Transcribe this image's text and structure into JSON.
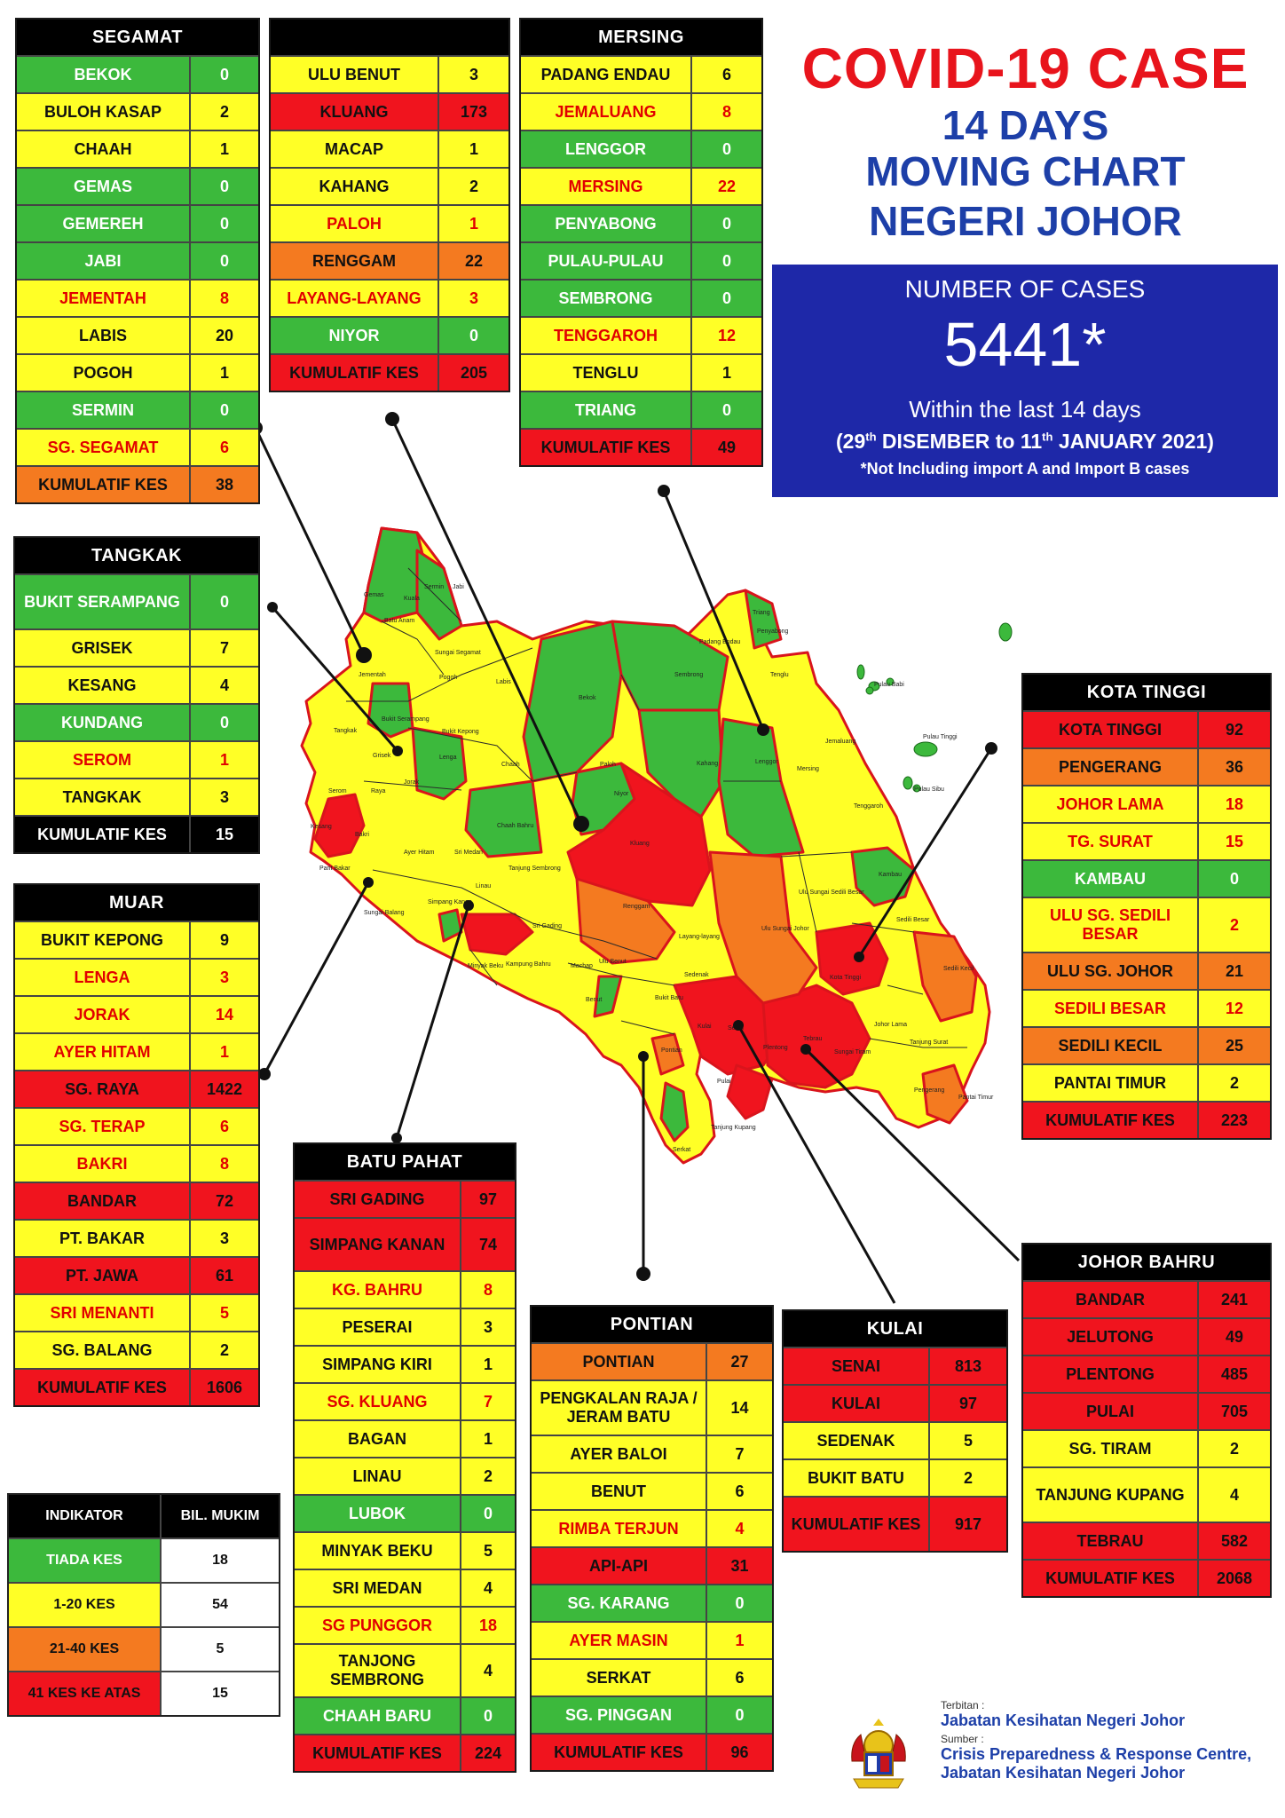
{
  "title": {
    "line1": "COVID-19 CASE",
    "line2": "14 DAYS",
    "line3": "MOVING CHART",
    "line4": "NEGERI JOHOR"
  },
  "summary": {
    "label": "NUMBER OF CASES",
    "total": "5441*",
    "within": "Within the last 14 days",
    "range_open": "(29",
    "sup1": "th",
    "range_mid": " DISEMBER to 11",
    "sup2": "th",
    "range_close": " JANUARY 2021)",
    "note": "*Not Including import A and Import B cases"
  },
  "colors": {
    "green": "#3cb93c",
    "yellow": "#ffff26",
    "orange": "#f47a20",
    "red": "#f0141e",
    "blue": "#1e28a8"
  },
  "districts": {
    "segamat": {
      "title": "SEGAMAT",
      "rows": [
        {
          "name": "BEKOK",
          "value": "0",
          "level": "g"
        },
        {
          "name": "BULOH KASAP",
          "value": "2",
          "level": "y"
        },
        {
          "name": "CHAAH",
          "value": "1",
          "level": "y"
        },
        {
          "name": "GEMAS",
          "value": "0",
          "level": "g"
        },
        {
          "name": "GEMEREH",
          "value": "0",
          "level": "g"
        },
        {
          "name": "JABI",
          "value": "0",
          "level": "g"
        },
        {
          "name": "JEMENTAH",
          "value": "8",
          "level": "yr"
        },
        {
          "name": "LABIS",
          "value": "20",
          "level": "y"
        },
        {
          "name": "POGOH",
          "value": "1",
          "level": "y"
        },
        {
          "name": "SERMIN",
          "value": "0",
          "level": "g"
        },
        {
          "name": "SG. SEGAMAT",
          "value": "6",
          "level": "yr"
        },
        {
          "name": "KUMULATIF KES",
          "value": "38",
          "level": "o"
        }
      ]
    },
    "ulubenut": {
      "title": "",
      "rows": [
        {
          "name": "ULU BENUT",
          "value": "3",
          "level": "y"
        },
        {
          "name": "KLUANG",
          "value": "173",
          "level": "r"
        },
        {
          "name": "MACAP",
          "value": "1",
          "level": "y"
        },
        {
          "name": "KAHANG",
          "value": "2",
          "level": "y"
        },
        {
          "name": "PALOH",
          "value": "1",
          "level": "yr"
        },
        {
          "name": "RENGGAM",
          "value": "22",
          "level": "o"
        },
        {
          "name": "LAYANG-LAYANG",
          "value": "3",
          "level": "yr"
        },
        {
          "name": "NIYOR",
          "value": "0",
          "level": "g"
        },
        {
          "name": "KUMULATIF KES",
          "value": "205",
          "level": "r"
        }
      ]
    },
    "mersing": {
      "title": "MERSING",
      "rows": [
        {
          "name": "PADANG ENDAU",
          "value": "6",
          "level": "y"
        },
        {
          "name": "JEMALUANG",
          "value": "8",
          "level": "yr"
        },
        {
          "name": "LENGGOR",
          "value": "0",
          "level": "g"
        },
        {
          "name": "MERSING",
          "value": "22",
          "level": "yr"
        },
        {
          "name": "PENYABONG",
          "value": "0",
          "level": "g"
        },
        {
          "name": "PULAU-PULAU",
          "value": "0",
          "level": "g"
        },
        {
          "name": "SEMBRONG",
          "value": "0",
          "level": "g"
        },
        {
          "name": "TENGGAROH",
          "value": "12",
          "level": "yr"
        },
        {
          "name": "TENGLU",
          "value": "1",
          "level": "y"
        },
        {
          "name": "TRIANG",
          "value": "0",
          "level": "g"
        },
        {
          "name": "KUMULATIF KES",
          "value": "49",
          "level": "r"
        }
      ]
    },
    "tangkak": {
      "title": "TANGKAK",
      "rows": [
        {
          "name": "BUKIT SERAMPANG",
          "value": "0",
          "level": "g",
          "tall": true
        },
        {
          "name": "GRISEK",
          "value": "7",
          "level": "y"
        },
        {
          "name": "KESANG",
          "value": "4",
          "level": "y"
        },
        {
          "name": "KUNDANG",
          "value": "0",
          "level": "g"
        },
        {
          "name": "SEROM",
          "value": "1",
          "level": "yr"
        },
        {
          "name": "TANGKAK",
          "value": "3",
          "level": "y"
        },
        {
          "name": "KUMULATIF KES",
          "value": "15",
          "level": "k"
        }
      ]
    },
    "muar": {
      "title": "MUAR",
      "rows": [
        {
          "name": "BUKIT KEPONG",
          "value": "9",
          "level": "y"
        },
        {
          "name": "LENGA",
          "value": "3",
          "level": "yr"
        },
        {
          "name": "JORAK",
          "value": "14",
          "level": "yr"
        },
        {
          "name": "AYER HITAM",
          "value": "1",
          "level": "yr"
        },
        {
          "name": "SG. RAYA",
          "value": "1422",
          "level": "r"
        },
        {
          "name": "SG. TERAP",
          "value": "6",
          "level": "yr"
        },
        {
          "name": "BAKRI",
          "value": "8",
          "level": "yr"
        },
        {
          "name": "BANDAR",
          "value": "72",
          "level": "r"
        },
        {
          "name": "PT. BAKAR",
          "value": "3",
          "level": "y"
        },
        {
          "name": "PT. JAWA",
          "value": "61",
          "level": "r"
        },
        {
          "name": "SRI MENANTI",
          "value": "5",
          "level": "yr"
        },
        {
          "name": "SG. BALANG",
          "value": "2",
          "level": "y"
        },
        {
          "name": "KUMULATIF KES",
          "value": "1606",
          "level": "r"
        }
      ]
    },
    "batupahat": {
      "title": "BATU PAHAT",
      "rows": [
        {
          "name": "SRI GADING",
          "value": "97",
          "level": "r"
        },
        {
          "name": "SIMPANG KANAN",
          "value": "74",
          "level": "r",
          "tall": true
        },
        {
          "name": "KG. BAHRU",
          "value": "8",
          "level": "yr"
        },
        {
          "name": "PESERAI",
          "value": "3",
          "level": "y"
        },
        {
          "name": "SIMPANG KIRI",
          "value": "1",
          "level": "y"
        },
        {
          "name": "SG. KLUANG",
          "value": "7",
          "level": "yr"
        },
        {
          "name": "BAGAN",
          "value": "1",
          "level": "y"
        },
        {
          "name": "LINAU",
          "value": "2",
          "level": "y"
        },
        {
          "name": "LUBOK",
          "value": "0",
          "level": "g"
        },
        {
          "name": "MINYAK BEKU",
          "value": "5",
          "level": "y"
        },
        {
          "name": "SRI MEDAN",
          "value": "4",
          "level": "y"
        },
        {
          "name": "SG PUNGGOR",
          "value": "18",
          "level": "yr"
        },
        {
          "name": "TANJONG SEMBRONG",
          "value": "4",
          "level": "y",
          "tall": true
        },
        {
          "name": "CHAAH BARU",
          "value": "0",
          "level": "g"
        },
        {
          "name": "KUMULATIF KES",
          "value": "224",
          "level": "r"
        }
      ]
    },
    "pontian": {
      "title": "PONTIAN",
      "rows": [
        {
          "name": "PONTIAN",
          "value": "27",
          "level": "o"
        },
        {
          "name": "PENGKALAN RAJA / JERAM BATU",
          "value": "14",
          "level": "y",
          "tall": true
        },
        {
          "name": "AYER BALOI",
          "value": "7",
          "level": "y"
        },
        {
          "name": "BENUT",
          "value": "6",
          "level": "y"
        },
        {
          "name": "RIMBA TERJUN",
          "value": "4",
          "level": "yr"
        },
        {
          "name": "API-API",
          "value": "31",
          "level": "r"
        },
        {
          "name": "SG. KARANG",
          "value": "0",
          "level": "g"
        },
        {
          "name": "AYER MASIN",
          "value": "1",
          "level": "yr"
        },
        {
          "name": "SERKAT",
          "value": "6",
          "level": "y"
        },
        {
          "name": "SG. PINGGAN",
          "value": "0",
          "level": "g"
        },
        {
          "name": "KUMULATIF KES",
          "value": "96",
          "level": "r"
        }
      ]
    },
    "kulai": {
      "title": "KULAI",
      "rows": [
        {
          "name": "SENAI",
          "value": "813",
          "level": "r"
        },
        {
          "name": "KULAI",
          "value": "97",
          "level": "r"
        },
        {
          "name": "SEDENAK",
          "value": "5",
          "level": "y"
        },
        {
          "name": "BUKIT BATU",
          "value": "2",
          "level": "y"
        },
        {
          "name": "KUMULATIF KES",
          "value": "917",
          "level": "r",
          "tall": true
        }
      ]
    },
    "kotatinggi": {
      "title": "KOTA TINGGI",
      "rows": [
        {
          "name": "KOTA TINGGI",
          "value": "92",
          "level": "r"
        },
        {
          "name": "PENGERANG",
          "value": "36",
          "level": "o"
        },
        {
          "name": "JOHOR LAMA",
          "value": "18",
          "level": "yr"
        },
        {
          "name": "TG. SURAT",
          "value": "15",
          "level": "yr"
        },
        {
          "name": "KAMBAU",
          "value": "0",
          "level": "g"
        },
        {
          "name": "ULU SG. SEDILI BESAR",
          "value": "2",
          "level": "yr",
          "tall": true
        },
        {
          "name": "ULU  SG. JOHOR",
          "value": "21",
          "level": "o"
        },
        {
          "name": "SEDILI BESAR",
          "value": "12",
          "level": "yr"
        },
        {
          "name": "SEDILI KECIL",
          "value": "25",
          "level": "o"
        },
        {
          "name": "PANTAI TIMUR",
          "value": "2",
          "level": "y"
        },
        {
          "name": "KUMULATIF KES",
          "value": "223",
          "level": "r"
        }
      ]
    },
    "johorbahru": {
      "title": "JOHOR BAHRU",
      "rows": [
        {
          "name": "BANDAR",
          "value": "241",
          "level": "r"
        },
        {
          "name": "JELUTONG",
          "value": "49",
          "level": "r"
        },
        {
          "name": "PLENTONG",
          "value": "485",
          "level": "r"
        },
        {
          "name": "PULAI",
          "value": "705",
          "level": "r"
        },
        {
          "name": "SG. TIRAM",
          "value": "2",
          "level": "y"
        },
        {
          "name": "TANJUNG KUPANG",
          "value": "4",
          "level": "y",
          "tall": true
        },
        {
          "name": "TEBRAU",
          "value": "582",
          "level": "r"
        },
        {
          "name": "KUMULATIF KES",
          "value": "2068",
          "level": "r"
        }
      ]
    }
  },
  "legend": {
    "h1": "INDIKATOR",
    "h2": "BIL. MUKIM",
    "rows": [
      {
        "label": "TIADA KES",
        "count": "18",
        "level": "g"
      },
      {
        "label": "1-20 KES",
        "count": "54",
        "level": "y"
      },
      {
        "label": "21-40 KES",
        "count": "5",
        "level": "o"
      },
      {
        "label": "41 KES KE ATAS",
        "count": "15",
        "level": "r"
      }
    ]
  },
  "footer": {
    "terbitan": "Terbitan :",
    "publisher": "Jabatan Kesihatan Negeri Johor",
    "sumber": "Sumber :",
    "source1": "Crisis Preparedness & Response Centre,",
    "source2": "Jabatan Kesihatan Negeri Johor"
  },
  "map_labels": [
    "Gemas",
    "Kuala",
    "Sermin",
    "Jabi",
    "Batu Anam",
    "Sungai Segamat",
    "Jementah",
    "Pogoh",
    "Bekok",
    "Labis",
    "Bukit Serampang",
    "Tangkak",
    "Bukit Kepong",
    "Lenga",
    "Grisek",
    "Serom",
    "Kesang",
    "Chaah",
    "Jorak",
    "Paloh",
    "Niyor",
    "Kahang",
    "Sembrong",
    "Padang Endau",
    "Triang",
    "Penyabong",
    "Tenglu",
    "Pulau Babi",
    "Pulau Tinggi",
    "Pulau Sibu",
    "Mersing",
    "Jemaluang",
    "Lenggor",
    "Tenggaroh",
    "Kluang",
    "Renggam",
    "Chaah Bahru",
    "Sri Medan",
    "Tanjung Sembrong",
    "Ayer Hitam",
    "Sri Gading",
    "Machap",
    "Ulu Benut",
    "Layang-layang",
    "Sedenak",
    "Bukit Batu",
    "Benut",
    "Pontian",
    "Kulai",
    "Senai",
    "Ulu Sungai Johor",
    "Ulu Sungai Sedili Besar",
    "Sedili Besar",
    "Sedili Kecil",
    "Kota Tinggi",
    "Johor Lama",
    "Tanjung Surat",
    "Pengerang",
    "Pantai Timur",
    "Kambau",
    "Sungai Tiram",
    "Tebrau",
    "Plentong",
    "Pulai",
    "Tanjung Kupang",
    "Serkat",
    "Raya",
    "Bakri",
    "Linau",
    "Minyak Beku",
    "Kampung Bahru",
    "Sungai Balang",
    "Simpang Kanan",
    "Parit Bakar"
  ]
}
